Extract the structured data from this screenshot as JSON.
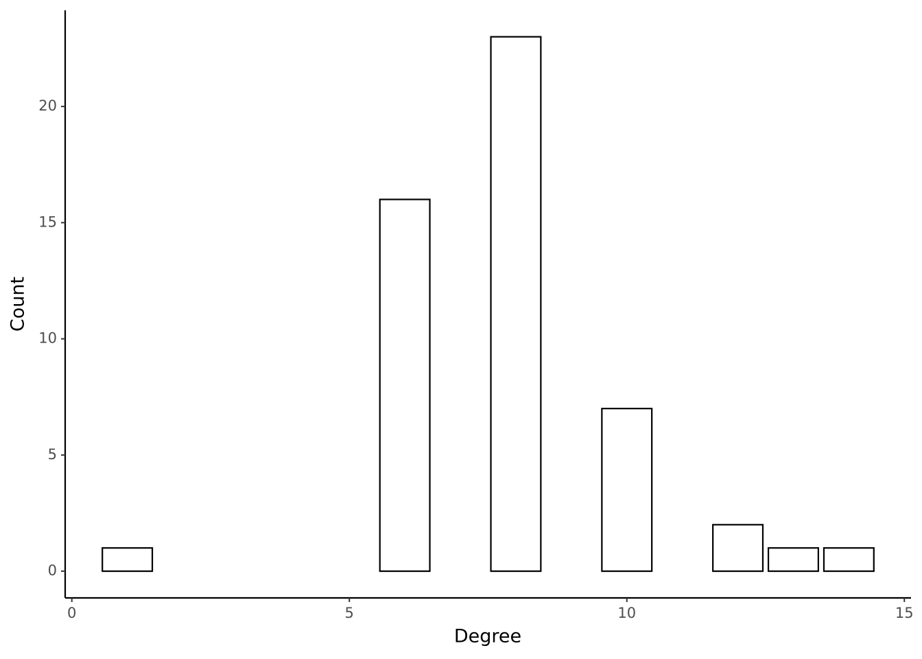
{
  "chart_data": {
    "type": "bar",
    "x_label": "Degree",
    "y_label": "Count",
    "x": [
      1,
      6,
      8,
      10,
      12,
      13,
      14
    ],
    "values": [
      1,
      16,
      23,
      7,
      2,
      1,
      1
    ],
    "fill": "#ffffff",
    "edge_color": "#000000",
    "xlim": [
      -0.12,
      15.12
    ],
    "xticks": [
      0,
      5,
      10,
      15
    ],
    "ylim": [
      -1.15,
      24.14
    ],
    "yticks": [
      0,
      5,
      10,
      15,
      20
    ]
  }
}
